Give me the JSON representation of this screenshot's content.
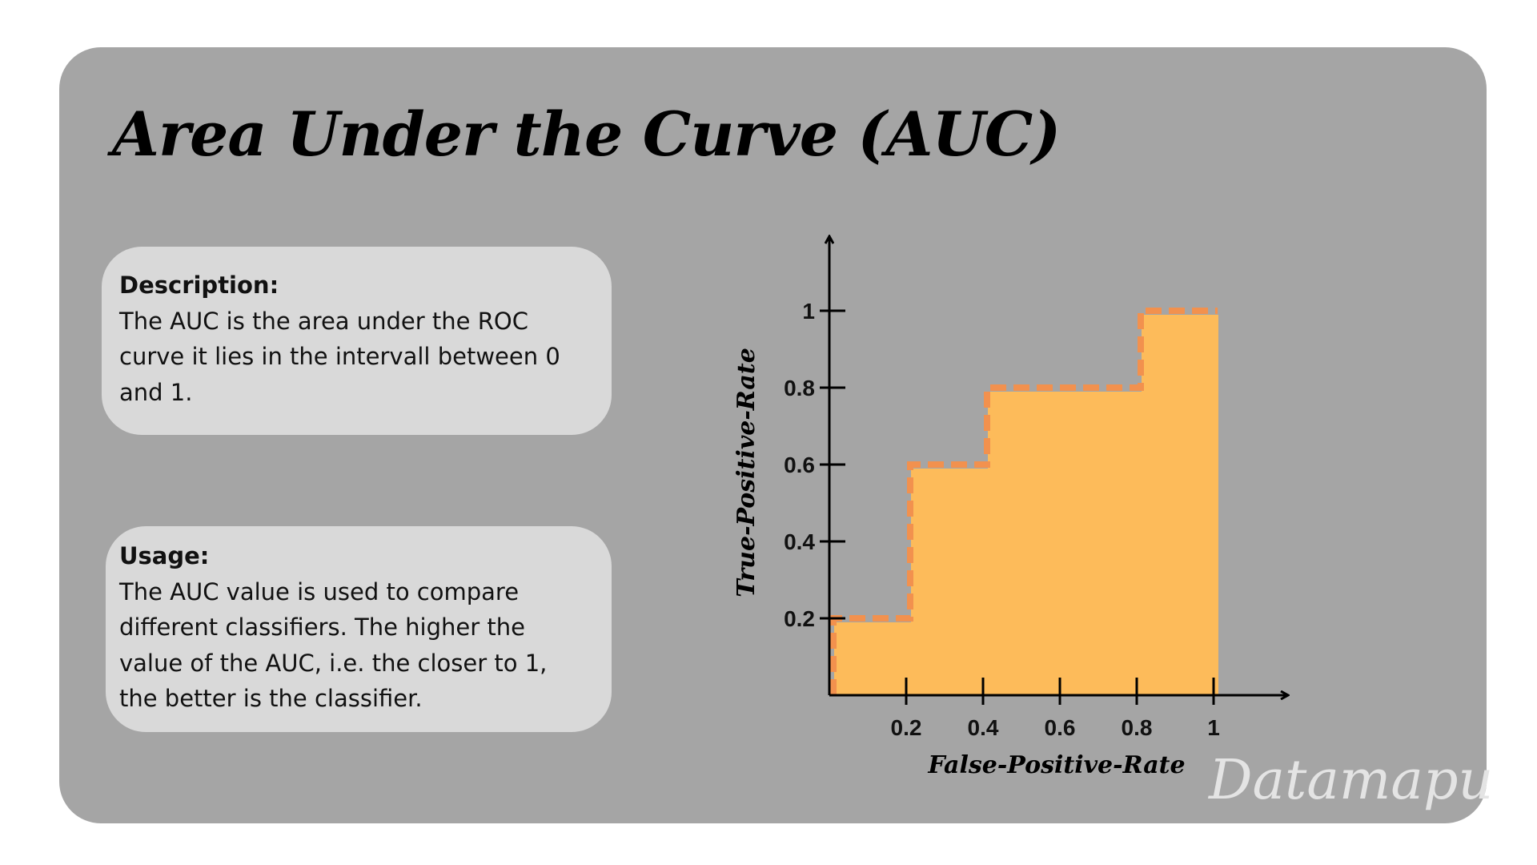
{
  "title": "Area Under the Curve (AUC)",
  "description": {
    "heading": "Description:",
    "lines": [
      "The AUC is the area under the ROC",
      "curve it lies in the intervall between 0",
      "and 1."
    ]
  },
  "usage": {
    "heading": "Usage:",
    "lines": [
      "The AUC value is used to compare",
      "different classifiers. The higher the",
      "value of the AUC, i.e. the closer to 1,",
      "the better is the classifier."
    ]
  },
  "watermark": "Datamapu",
  "colors": {
    "card_background": "#a5a5a5",
    "box_background": "#d9d9d9",
    "area_fill": "#fdbb5a",
    "roc_line": "#f2914e"
  },
  "chart_data": {
    "type": "area",
    "xlabel": "False-Positive-Rate",
    "ylabel": "True-Positive-Rate",
    "xlim": [
      0,
      1.2
    ],
    "ylim": [
      0,
      1.2
    ],
    "x_ticks": [
      0.2,
      0.4,
      0.6,
      0.8,
      1
    ],
    "x_tick_labels": [
      "0.2",
      "0.4",
      "0.6",
      "0.8",
      "1"
    ],
    "y_ticks": [
      0.2,
      0.4,
      0.6,
      0.8,
      1
    ],
    "y_tick_labels": [
      "0.2",
      "0.4",
      "0.6",
      "0.8",
      "1"
    ],
    "roc_curve": {
      "style": "dashed",
      "x": [
        0,
        0,
        0.2,
        0.2,
        0.4,
        0.4,
        0.8,
        0.8,
        1
      ],
      "y": [
        0,
        0.2,
        0.2,
        0.6,
        0.6,
        0.8,
        0.8,
        1,
        1
      ]
    },
    "area_steps": [
      {
        "x0": 0,
        "x1": 0.2,
        "y": 0.2
      },
      {
        "x0": 0.2,
        "x1": 0.4,
        "y": 0.6
      },
      {
        "x0": 0.4,
        "x1": 0.8,
        "y": 0.8
      },
      {
        "x0": 0.8,
        "x1": 1,
        "y": 1
      }
    ],
    "grid": false,
    "legend": "none"
  }
}
